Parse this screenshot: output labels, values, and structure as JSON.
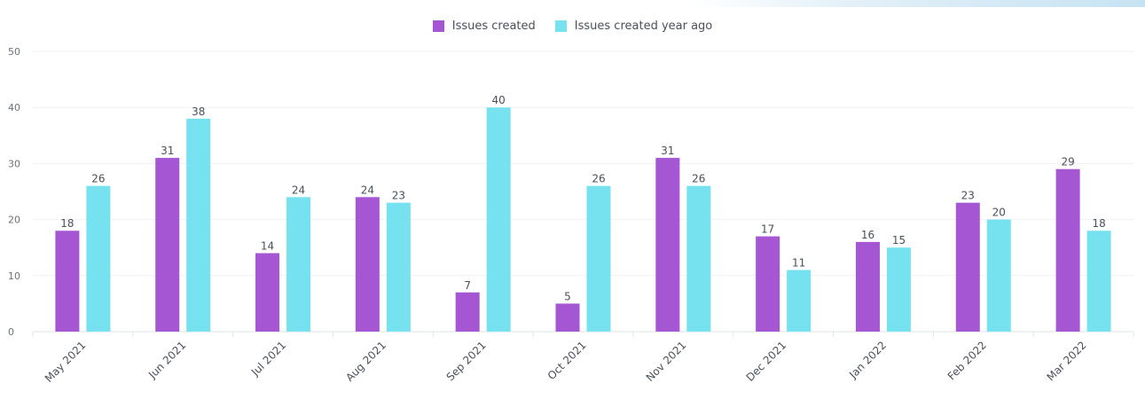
{
  "legend": {
    "series1_label": "Issues created",
    "series2_label": "Issues created year ago"
  },
  "chart_data": {
    "type": "bar",
    "categories": [
      "May 2021",
      "Jun 2021",
      "Jul 2021",
      "Aug 2021",
      "Sep 2021",
      "Oct 2021",
      "Nov 2021",
      "Dec 2021",
      "Jan 2022",
      "Feb 2022",
      "Mar 2022"
    ],
    "series": [
      {
        "name": "Issues created",
        "color": "#a456d3",
        "values": [
          18,
          31,
          14,
          24,
          7,
          5,
          31,
          17,
          16,
          23,
          29
        ]
      },
      {
        "name": "Issues created year ago",
        "color": "#76e2f0",
        "values": [
          26,
          38,
          24,
          23,
          40,
          26,
          26,
          11,
          15,
          20,
          18
        ]
      }
    ],
    "ylim": [
      0,
      50
    ],
    "yticks": [
      0,
      10,
      20,
      30,
      40,
      50
    ],
    "grid": true,
    "legend_position": "top-center",
    "title": "",
    "xlabel": "",
    "ylabel": ""
  }
}
